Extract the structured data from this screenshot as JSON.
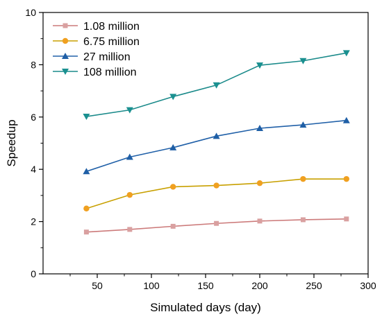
{
  "chart_data": {
    "type": "line",
    "title": "",
    "xlabel": "Simulated days (day)",
    "ylabel": "Speedup",
    "xlim": [
      0,
      300
    ],
    "ylim": [
      0,
      10
    ],
    "xticks": [
      50,
      100,
      150,
      200,
      250,
      300
    ],
    "xtick_labels": [
      "50",
      "100",
      "150",
      "200",
      "250",
      "300"
    ],
    "yticks": [
      0,
      2,
      4,
      6,
      8,
      10
    ],
    "ytick_labels": [
      "0",
      "2",
      "4",
      "6",
      "8",
      "10"
    ],
    "grid": false,
    "legend_position": "top-left",
    "x": [
      40,
      80,
      120,
      160,
      200,
      240,
      280
    ],
    "series": [
      {
        "name": "1.08 million",
        "marker": "square",
        "color": "#cc7a7a",
        "marker_color": "#d9a0a0",
        "values": [
          1.6,
          1.7,
          1.82,
          1.93,
          2.02,
          2.07,
          2.1
        ]
      },
      {
        "name": "6.75 million",
        "marker": "circle",
        "color": "#c8a000",
        "marker_color": "#f0a020",
        "values": [
          2.5,
          3.02,
          3.33,
          3.38,
          3.47,
          3.63,
          3.63
        ]
      },
      {
        "name": "27 million",
        "marker": "triangle-up",
        "color": "#2060a8",
        "marker_color": "#1f5fa6",
        "values": [
          3.92,
          4.47,
          4.83,
          5.27,
          5.57,
          5.7,
          5.87
        ]
      },
      {
        "name": "108 million",
        "marker": "triangle-down",
        "color": "#1a8a8a",
        "marker_color": "#1a9090",
        "values": [
          6.02,
          6.27,
          6.78,
          7.22,
          7.98,
          8.15,
          8.45
        ]
      }
    ]
  }
}
